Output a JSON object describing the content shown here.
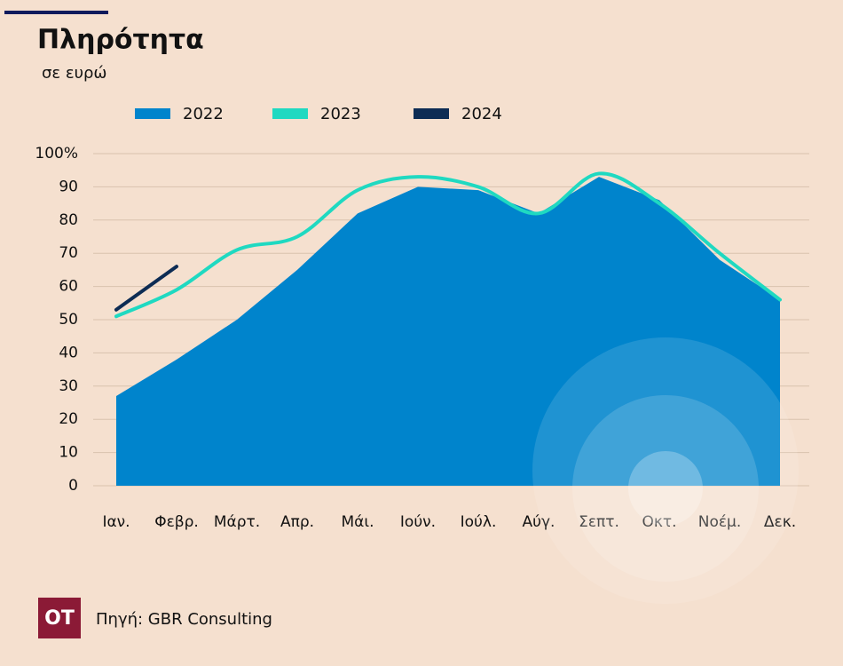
{
  "chart_data": {
    "type": "area-line",
    "title": "Πληρότητα",
    "subtitle": "σε ευρώ",
    "categories": [
      "Ιαν.",
      "Φεβρ.",
      "Μάρτ.",
      "Απρ.",
      "Μάι.",
      "Ιούν.",
      "Ιούλ.",
      "Αύγ.",
      "Σεπτ.",
      "Οκτ.",
      "Νοέμ.",
      "Δεκ."
    ],
    "series": [
      {
        "name": "2022",
        "color": "#0084cc",
        "values": [
          27,
          38,
          50,
          65,
          82,
          90,
          89,
          82,
          93,
          86,
          68,
          56
        ]
      },
      {
        "name": "2023",
        "color": "#1fd9c1",
        "values": [
          51,
          59,
          71,
          75,
          89,
          93,
          90,
          82,
          94,
          85,
          70,
          56
        ]
      },
      {
        "name": "2024",
        "color": "#0d2c54",
        "values": [
          53,
          66,
          null,
          null,
          null,
          null,
          null,
          null,
          null,
          null,
          null,
          null
        ]
      }
    ],
    "ylim": [
      0,
      100
    ],
    "yticks": [
      0,
      10,
      20,
      30,
      40,
      50,
      60,
      70,
      80,
      90,
      {
        "value": 100,
        "label": "100%"
      }
    ],
    "grid": true,
    "source": "Πηγή: GBR Consulting",
    "logo": "OT"
  }
}
